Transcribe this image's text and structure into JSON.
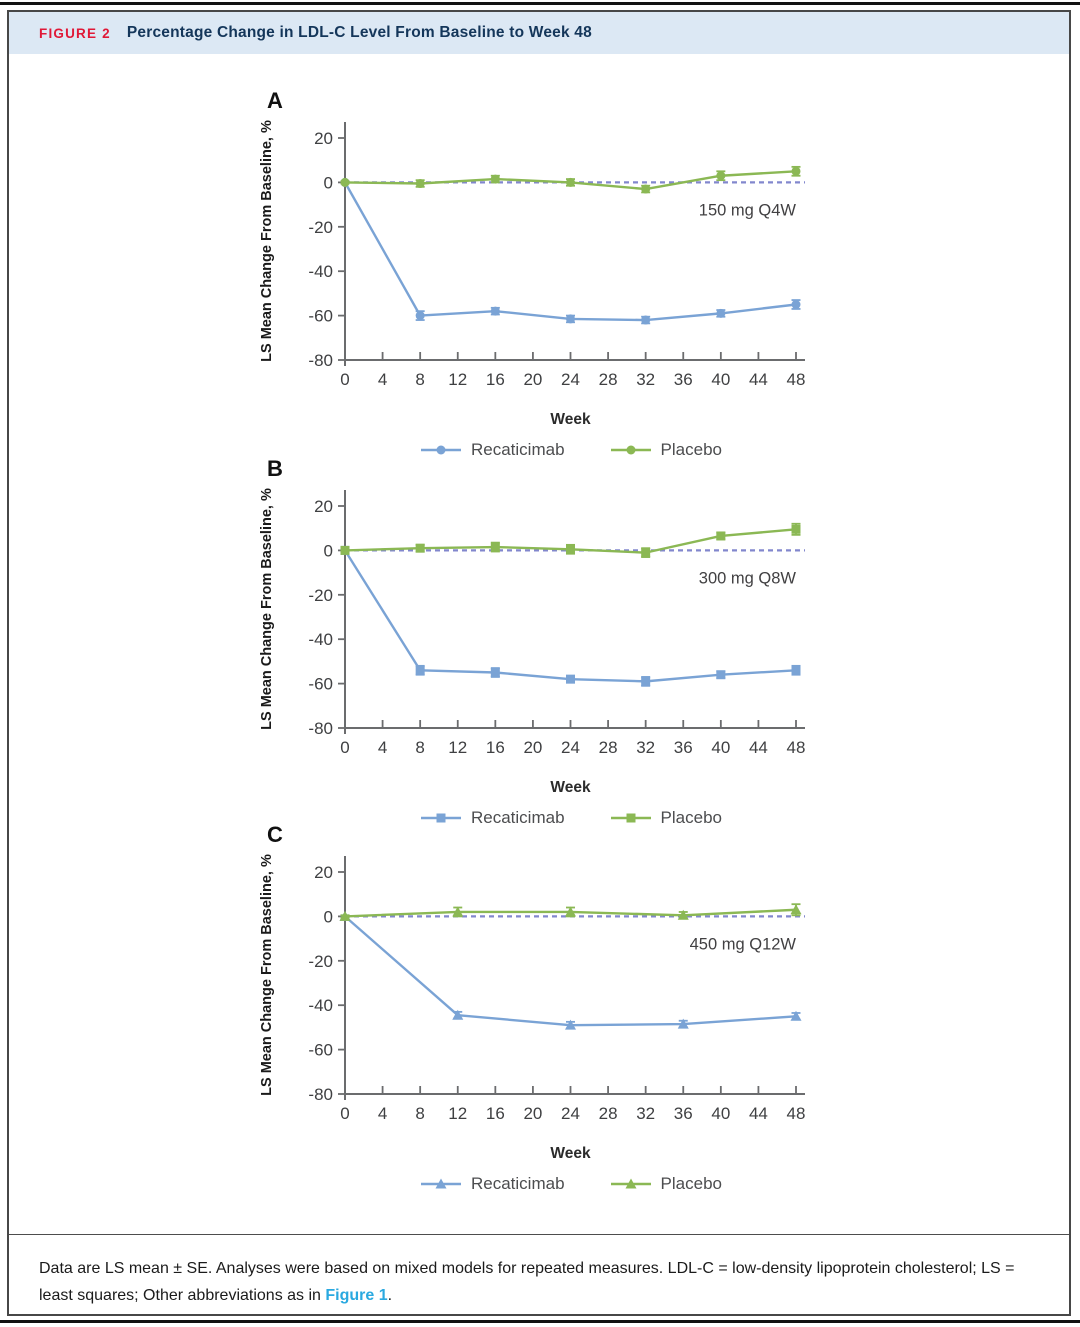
{
  "figure": {
    "tag": "FIGURE 2",
    "title": "Percentage Change in LDL-C Level From Baseline to Week 48",
    "colors": {
      "accent_red": "#e01837",
      "title_navy": "#14365a",
      "header_bg": "#dce8f4",
      "recaticimab_blue": "#7aa3d5",
      "placebo_green": "#8bb854",
      "zero_line_violet": "#8287cd",
      "axis_gray": "#6b6c6e",
      "link_blue": "#2aa9e0"
    }
  },
  "chart_data": [
    {
      "type": "line",
      "panel_label": "A",
      "dose_label": "150 mg Q4W",
      "xlabel": "Week",
      "ylabel": "LS Mean Change From Baseline, %",
      "x_ticks": [
        0,
        4,
        8,
        12,
        16,
        20,
        24,
        28,
        32,
        36,
        40,
        44,
        48
      ],
      "y_ticks": [
        20,
        0,
        -20,
        -40,
        -60,
        -80
      ],
      "xlim": [
        0,
        48
      ],
      "ylim": [
        -80,
        20
      ],
      "grid": false,
      "legend_position": "bottom",
      "zero_line_style": "dashed",
      "series": [
        {
          "name": "Recaticimab",
          "color": "#7aa3d5",
          "marker": "circle",
          "x": [
            0,
            8,
            16,
            24,
            32,
            40,
            48
          ],
          "y": [
            0,
            -60,
            -58,
            -61.5,
            -62,
            -59,
            -55
          ],
          "se": [
            0.5,
            2,
            1.5,
            1.5,
            1.5,
            1.5,
            2
          ]
        },
        {
          "name": "Placebo",
          "color": "#8bb854",
          "marker": "circle",
          "x": [
            0,
            8,
            16,
            24,
            32,
            40,
            48
          ],
          "y": [
            0,
            -0.5,
            1.5,
            0,
            -3,
            3,
            5
          ],
          "se": [
            0.5,
            1.5,
            1.5,
            1.5,
            1.5,
            2,
            2
          ]
        }
      ]
    },
    {
      "type": "line",
      "panel_label": "B",
      "dose_label": "300 mg Q8W",
      "xlabel": "Week",
      "ylabel": "LS Mean Change From Baseline, %",
      "x_ticks": [
        0,
        4,
        8,
        12,
        16,
        20,
        24,
        28,
        32,
        36,
        40,
        44,
        48
      ],
      "y_ticks": [
        20,
        0,
        -20,
        -40,
        -60,
        -80
      ],
      "xlim": [
        0,
        48
      ],
      "ylim": [
        -80,
        20
      ],
      "grid": false,
      "legend_position": "bottom",
      "zero_line_style": "dashed",
      "series": [
        {
          "name": "Recaticimab",
          "color": "#7aa3d5",
          "marker": "square",
          "x": [
            0,
            8,
            16,
            24,
            32,
            40,
            48
          ],
          "y": [
            0,
            -54,
            -55,
            -58,
            -59,
            -56,
            -54
          ],
          "se": [
            0.5,
            2,
            2,
            1.5,
            2,
            1.5,
            2
          ]
        },
        {
          "name": "Placebo",
          "color": "#8bb854",
          "marker": "square",
          "x": [
            0,
            8,
            16,
            24,
            32,
            40,
            48
          ],
          "y": [
            0,
            1,
            1.5,
            0.5,
            -1,
            6.5,
            9.5
          ],
          "se": [
            0.5,
            1.5,
            2,
            2,
            2,
            1.5,
            2.5
          ]
        }
      ]
    },
    {
      "type": "line",
      "panel_label": "C",
      "dose_label": "450 mg Q12W",
      "xlabel": "Week",
      "ylabel": "LS Mean Change From Baseline, %",
      "x_ticks": [
        0,
        4,
        8,
        12,
        16,
        20,
        24,
        28,
        32,
        36,
        40,
        44,
        48
      ],
      "y_ticks": [
        20,
        0,
        -20,
        -40,
        -60,
        -80
      ],
      "xlim": [
        0,
        48
      ],
      "ylim": [
        -80,
        20
      ],
      "grid": false,
      "legend_position": "bottom",
      "zero_line_style": "dashed",
      "series": [
        {
          "name": "Recaticimab",
          "color": "#7aa3d5",
          "marker": "triangle",
          "x": [
            0,
            12,
            24,
            36,
            48
          ],
          "y": [
            0,
            -44.5,
            -49,
            -48.5,
            -45
          ],
          "se": [
            0.5,
            1.5,
            1.5,
            1.5,
            1.5
          ]
        },
        {
          "name": "Placebo",
          "color": "#8bb854",
          "marker": "triangle",
          "x": [
            0,
            12,
            24,
            36,
            48
          ],
          "y": [
            0,
            2,
            2,
            0.5,
            3
          ],
          "se": [
            0.5,
            2,
            2,
            1.5,
            2.5
          ]
        }
      ]
    }
  ],
  "caption": {
    "text_before_link": "Data are LS mean ± SE. Analyses were based on mixed models for repeated measures. LDL-C = low-density lipoprotein cholesterol; LS = least squares; Other abbreviations as in ",
    "link_text": "Figure 1",
    "text_after_link": "."
  }
}
